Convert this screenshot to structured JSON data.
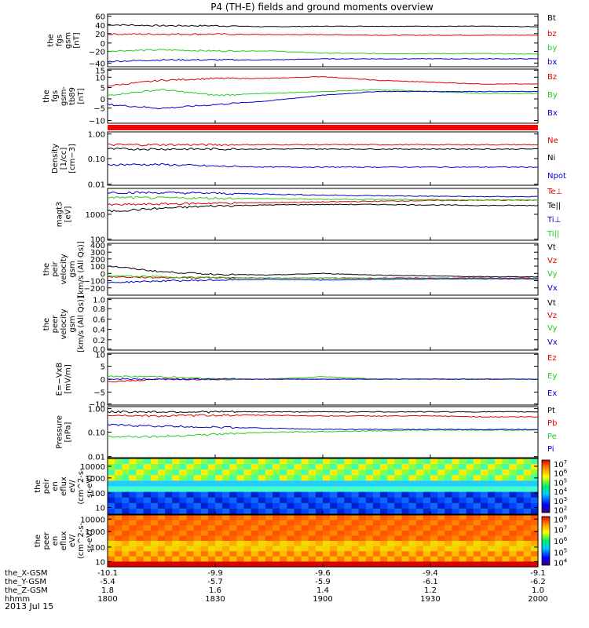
{
  "title": "P4 (TH-E) fields and ground moments overview",
  "date_label": "2013 Jul 15",
  "time_axis": {
    "rows": [
      {
        "label": "the_X-GSM",
        "values": [
          "-10.1",
          "-9.9",
          "-9.6",
          "-9.4",
          "-9.1"
        ]
      },
      {
        "label": "the_Y-GSM",
        "values": [
          "-5.4",
          "-5.7",
          "-5.9",
          "-6.1",
          "-6.2"
        ]
      },
      {
        "label": "the_Z-GSM",
        "values": [
          "1.8",
          "1.6",
          "1.4",
          "1.2",
          "1.0"
        ]
      },
      {
        "label": "hhmm",
        "values": [
          "1800",
          "1830",
          "1900",
          "1930",
          "2000"
        ]
      }
    ]
  },
  "panels": [
    {
      "ylabel": [
        "the",
        "fgs",
        "gsm",
        "[nT]"
      ],
      "ticks": [
        "60",
        "40",
        "20",
        "0",
        "−20",
        "−40"
      ],
      "legend": [
        {
          "t": "Bt",
          "c": "#000000"
        },
        {
          "t": "bz",
          "c": "#dd0000"
        },
        {
          "t": "by",
          "c": "#22cc22"
        },
        {
          "t": "bx",
          "c": "#0000cc"
        }
      ]
    },
    {
      "ylabel": [
        "the",
        "fgs",
        "gsm-",
        "tb89",
        "[nT]"
      ],
      "ticks": [
        "15",
        "10",
        "5",
        "0",
        "−5",
        "−10"
      ],
      "legend": [
        {
          "t": "Bz",
          "c": "#dd0000"
        },
        {
          "t": "By",
          "c": "#22cc22"
        },
        {
          "t": "Bx",
          "c": "#0000cc"
        }
      ]
    },
    {
      "ylabel": [
        "Density",
        "[1/cc]",
        "[cm−3]"
      ],
      "ticks": [
        "1.00",
        "0.10",
        "0.01"
      ],
      "legend": [
        {
          "t": "Ne",
          "c": "#dd0000"
        },
        {
          "t": "Ni",
          "c": "#000000"
        },
        {
          "t": "Npot",
          "c": "#0000cc"
        }
      ]
    },
    {
      "ylabel": [
        "magt3",
        "[eV]"
      ],
      "ticks": [
        "1000",
        "100"
      ],
      "legend": [
        {
          "t": "Te⊥",
          "c": "#dd0000"
        },
        {
          "t": "Te||",
          "c": "#000000"
        },
        {
          "t": "Ti⊥",
          "c": "#0000cc"
        },
        {
          "t": "Ti||",
          "c": "#22cc22"
        }
      ]
    },
    {
      "ylabel": [
        "the",
        "peir",
        "velocity",
        "gsm",
        "[km/s (All Qs)]"
      ],
      "ticks": [
        "400",
        "300",
        "200",
        "100",
        "0",
        "−100",
        "−200"
      ],
      "legend": [
        {
          "t": "Vt",
          "c": "#000000"
        },
        {
          "t": "Vz",
          "c": "#dd0000"
        },
        {
          "t": "Vy",
          "c": "#22cc22"
        },
        {
          "t": "Vx",
          "c": "#0000cc"
        }
      ]
    },
    {
      "ylabel": [
        "the",
        "peer",
        "velocity",
        "gsm",
        "[km/s (All Qs)]"
      ],
      "ticks": [
        "1.0",
        "0.8",
        "0.6",
        "0.4",
        "0.2",
        "0.0"
      ],
      "legend": [
        {
          "t": "Vt",
          "c": "#000000"
        },
        {
          "t": "Vz",
          "c": "#dd0000"
        },
        {
          "t": "Vy",
          "c": "#22cc22"
        },
        {
          "t": "Vx",
          "c": "#0000cc"
        }
      ]
    },
    {
      "ylabel": [
        "E=−VxB",
        "[mV/m]"
      ],
      "ticks": [
        "10",
        "5",
        "0",
        "−5",
        "−10"
      ],
      "legend": [
        {
          "t": "Ez",
          "c": "#dd0000"
        },
        {
          "t": "Ey",
          "c": "#22cc22"
        },
        {
          "t": "Ex",
          "c": "#0000cc"
        }
      ]
    },
    {
      "ylabel": [
        "Pressure",
        "[nPa]"
      ],
      "ticks": [
        "1.00",
        "0.10",
        "0.01"
      ],
      "legend": [
        {
          "t": "Pt",
          "c": "#000000"
        },
        {
          "t": "Pb",
          "c": "#dd0000"
        },
        {
          "t": "Pe",
          "c": "#22cc22"
        },
        {
          "t": "Pi",
          "c": "#0000cc"
        }
      ]
    },
    {
      "ylabel": [
        "the",
        "peir",
        "en",
        "eflux",
        "eV/",
        "(cm^2-s-",
        "sr-eV)"
      ],
      "ticks": [
        "10000",
        "1000",
        "100",
        "10"
      ],
      "colorbar": [
        "10^7",
        "10^6",
        "10^5",
        "10^4",
        "10^3",
        "10^2"
      ]
    },
    {
      "ylabel": [
        "the",
        "peer",
        "en",
        "eflux",
        "eV/",
        "(cm^2-s-",
        "sr-eV)"
      ],
      "ticks": [
        "10000",
        "1000",
        "100",
        "10"
      ],
      "colorbar": [
        "10^8",
        "10^7",
        "10^6",
        "10^5",
        "10^4"
      ]
    }
  ],
  "chart_data": {
    "type": "line",
    "x_unit": "hhmm (UT)",
    "x": [
      "1800",
      "1815",
      "1830",
      "1845",
      "1900",
      "1915",
      "1930",
      "1945",
      "2000"
    ],
    "panels": [
      {
        "id": "fgs_gsm",
        "ylim": [
          -40,
          60
        ],
        "series": [
          {
            "name": "Bt",
            "values": [
              40,
              38,
              38,
              36,
              37,
              37,
              37,
              37,
              36
            ]
          },
          {
            "name": "bz",
            "values": [
              22,
              22,
              22,
              21,
              21,
              20,
              20,
              20,
              20
            ]
          },
          {
            "name": "by",
            "values": [
              -10,
              -8,
              -10,
              -10,
              -14,
              -15,
              -15,
              -15,
              -16
            ]
          },
          {
            "name": "bx",
            "values": [
              -30,
              -27,
              -27,
              -27,
              -25,
              -25,
              -25,
              -25,
              -25
            ]
          }
        ]
      },
      {
        "id": "fgs_gsm_tb89",
        "ylim": [
          -12,
          17
        ],
        "series": [
          {
            "name": "Bz",
            "values": [
              8,
              11,
              12,
              12,
              13,
              11,
              10,
              9,
              9
            ]
          },
          {
            "name": "By",
            "values": [
              3,
              6,
              3,
              4,
              5,
              6,
              5,
              4,
              4
            ]
          },
          {
            "name": "Bx",
            "values": [
              -2,
              -4,
              -2,
              0,
              3,
              5,
              5,
              5,
              5
            ]
          }
        ]
      },
      {
        "id": "density",
        "ylim": [
          0.01,
          1.5
        ],
        "log": true,
        "series": [
          {
            "name": "Ne",
            "values": [
              0.45,
              0.45,
              0.45,
              0.45,
              0.45,
              0.45,
              0.45,
              0.45,
              0.45
            ]
          },
          {
            "name": "Ni",
            "values": [
              0.3,
              0.3,
              0.3,
              0.3,
              0.3,
              0.3,
              0.3,
              0.3,
              0.3
            ]
          },
          {
            "name": "Npot",
            "values": [
              0.07,
              0.07,
              0.06,
              0.055,
              0.055,
              0.055,
              0.055,
              0.055,
              0.055
            ]
          }
        ]
      },
      {
        "id": "temperature",
        "ylim": [
          100,
          10000
        ],
        "log": true,
        "series": [
          {
            "name": "Te⊥",
            "values": [
              2300,
              2500,
              2700,
              2800,
              3000,
              3200,
              3400,
              3500,
              3500
            ]
          },
          {
            "name": "Te||",
            "values": [
              1300,
              1700,
              2100,
              2300,
              2400,
              2400,
              2300,
              2200,
              2200
            ]
          },
          {
            "name": "Ti⊥",
            "values": [
              7000,
              6800,
              6500,
              6000,
              5500,
              5200,
              5000,
              4800,
              4800
            ]
          },
          {
            "name": "Ti||",
            "values": [
              4500,
              4300,
              4200,
              4000,
              3800,
              3800,
              3700,
              3600,
              3600
            ]
          }
        ]
      },
      {
        "id": "peir_velocity",
        "ylim": [
          -200,
          420
        ],
        "series": [
          {
            "name": "Vt",
            "values": [
              150,
              80,
              50,
              40,
              60,
              40,
              30,
              20,
              20
            ]
          },
          {
            "name": "Vz",
            "values": [
              20,
              10,
              10,
              5,
              5,
              5,
              5,
              5,
              5
            ]
          },
          {
            "name": "Vy",
            "values": [
              30,
              20,
              10,
              5,
              5,
              0,
              0,
              0,
              0
            ]
          },
          {
            "name": "Vx",
            "values": [
              -50,
              -30,
              -20,
              -10,
              -20,
              -10,
              -5,
              -5,
              -5
            ]
          }
        ]
      },
      {
        "id": "peer_velocity",
        "ylim": [
          0,
          1
        ],
        "series": []
      },
      {
        "id": "e_field",
        "ylim": [
          -10,
          10
        ],
        "series": [
          {
            "name": "Ez",
            "values": [
              -1,
              0,
              0,
              0,
              0,
              0,
              0,
              0,
              0
            ]
          },
          {
            "name": "Ey",
            "values": [
              1,
              1,
              0,
              0,
              1,
              0,
              0,
              0,
              0
            ]
          },
          {
            "name": "Ex",
            "values": [
              0,
              0,
              0,
              0,
              0,
              0,
              0,
              0,
              0
            ]
          }
        ]
      },
      {
        "id": "pressure",
        "ylim": [
          0.01,
          1.5
        ],
        "log": true,
        "series": [
          {
            "name": "Pt",
            "values": [
              0.9,
              0.9,
              0.9,
              0.9,
              0.9,
              0.9,
              0.9,
              0.9,
              0.9
            ]
          },
          {
            "name": "Pb",
            "values": [
              0.65,
              0.6,
              0.65,
              0.65,
              0.6,
              0.6,
              0.6,
              0.55,
              0.55
            ]
          },
          {
            "name": "Pe",
            "values": [
              0.08,
              0.08,
              0.1,
              0.12,
              0.13,
              0.14,
              0.15,
              0.15,
              0.15
            ]
          },
          {
            "name": "Pi",
            "values": [
              0.25,
              0.22,
              0.2,
              0.18,
              0.16,
              0.16,
              0.16,
              0.16,
              0.16
            ]
          }
        ]
      }
    ]
  }
}
